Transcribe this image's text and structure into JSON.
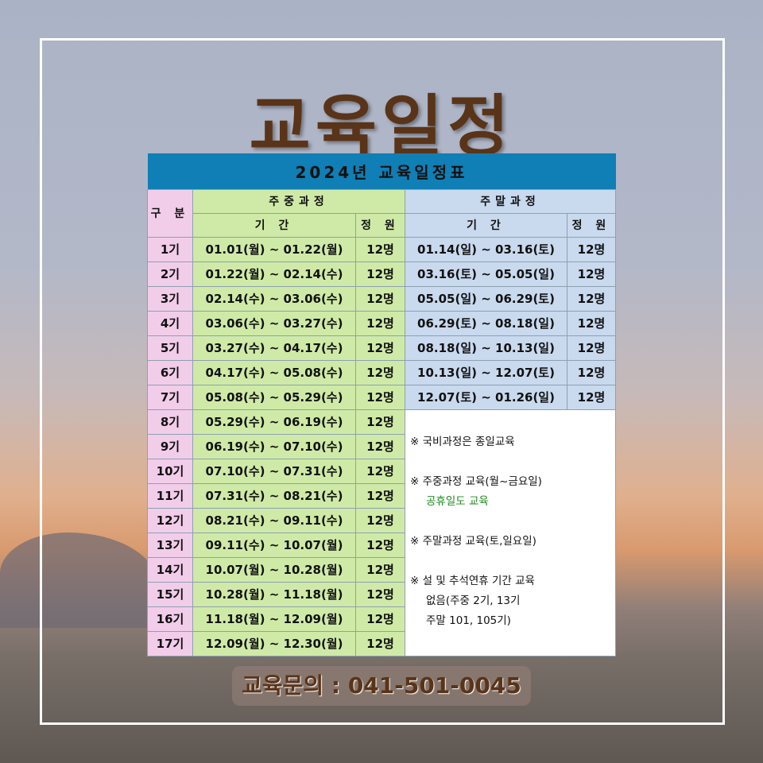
{
  "title": "교육일정",
  "table": {
    "caption": "2024년 교육일정표",
    "col_gubun": "구 분",
    "weekday_header": "주중과정",
    "weekend_header": "주말과정",
    "period": "기 간",
    "capacity": "정 원",
    "rows": [
      [
        "1기",
        "01.01(월) ~ 01.22(월)",
        "12명",
        "01.14(일) ~ 03.16(토)",
        "12명"
      ],
      [
        "2기",
        "01.22(월) ~ 02.14(수)",
        "12명",
        "03.16(토) ~ 05.05(일)",
        "12명"
      ],
      [
        "3기",
        "02.14(수) ~ 03.06(수)",
        "12명",
        "05.05(일) ~ 06.29(토)",
        "12명"
      ],
      [
        "4기",
        "03.06(수) ~ 03.27(수)",
        "12명",
        "06.29(토) ~ 08.18(일)",
        "12명"
      ],
      [
        "5기",
        "03.27(수) ~ 04.17(수)",
        "12명",
        "08.18(일) ~ 10.13(일)",
        "12명"
      ],
      [
        "6기",
        "04.17(수) ~ 05.08(수)",
        "12명",
        "10.13(일) ~ 12.07(토)",
        "12명"
      ],
      [
        "7기",
        "05.08(수) ~ 05.29(수)",
        "12명",
        "12.07(토) ~ 01.26(일)",
        "12명"
      ],
      [
        "8기",
        "05.29(수) ~ 06.19(수)",
        "12명"
      ],
      [
        "9기",
        "06.19(수) ~ 07.10(수)",
        "12명"
      ],
      [
        "10기",
        "07.10(수) ~ 07.31(수)",
        "12명"
      ],
      [
        "11기",
        "07.31(수) ~ 08.21(수)",
        "12명"
      ],
      [
        "12기",
        "08.21(수) ~ 09.11(수)",
        "12명"
      ],
      [
        "13기",
        "09.11(수) ~ 10.07(월)",
        "12명"
      ],
      [
        "14기",
        "10.07(월) ~ 10.28(월)",
        "12명"
      ],
      [
        "15기",
        "10.28(월) ~ 11.18(월)",
        "12명"
      ],
      [
        "16기",
        "11.18(월) ~ 12.09(월)",
        "12명"
      ],
      [
        "17기",
        "12.09(월) ~ 12.30(월)",
        "12명"
      ]
    ]
  },
  "notes": {
    "n1": "※ 국비과정은 종일교육",
    "n2": "※ 주중과정 교육(월~금요일)",
    "n2_green": "공휴일도 교육",
    "n3": "※ 주말과정 교육(토,일요일)",
    "n4": "※ 설 및 추석연휴 기간 교육",
    "n4b": "없음(주중 2기, 13기",
    "n4c": "주말 101, 105기)"
  },
  "contact": "교육문의 : 041-501-0045",
  "colors": {
    "caption": "#0f7fb5",
    "gubun": "#f1cdea",
    "weekday": "#cfeaa7",
    "weekend": "#c9d9ee",
    "title": "#5a3418",
    "note_green": "#1e8a1e"
  }
}
